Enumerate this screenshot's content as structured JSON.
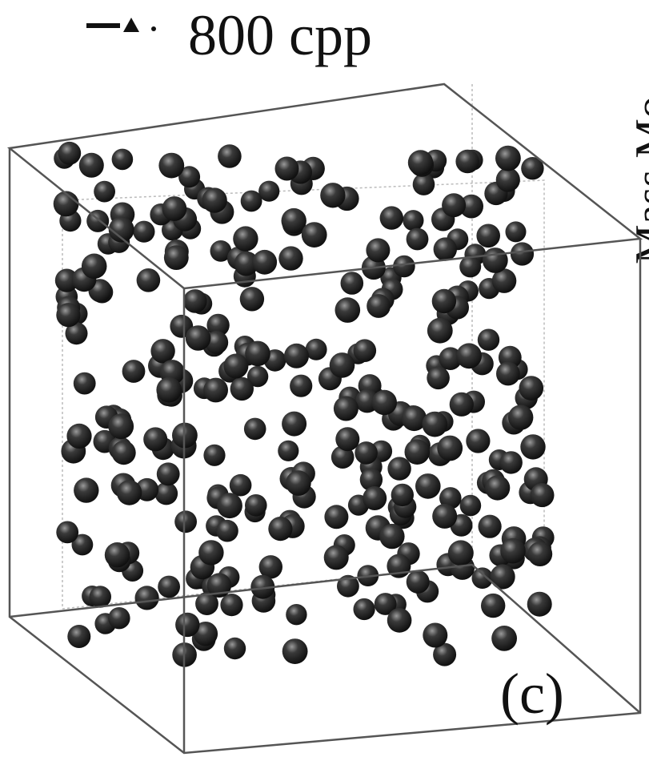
{
  "legend": {
    "label": "800 cpp"
  },
  "panel_label": "(c)",
  "axis_label_fragment": "Mass Mo"
}
